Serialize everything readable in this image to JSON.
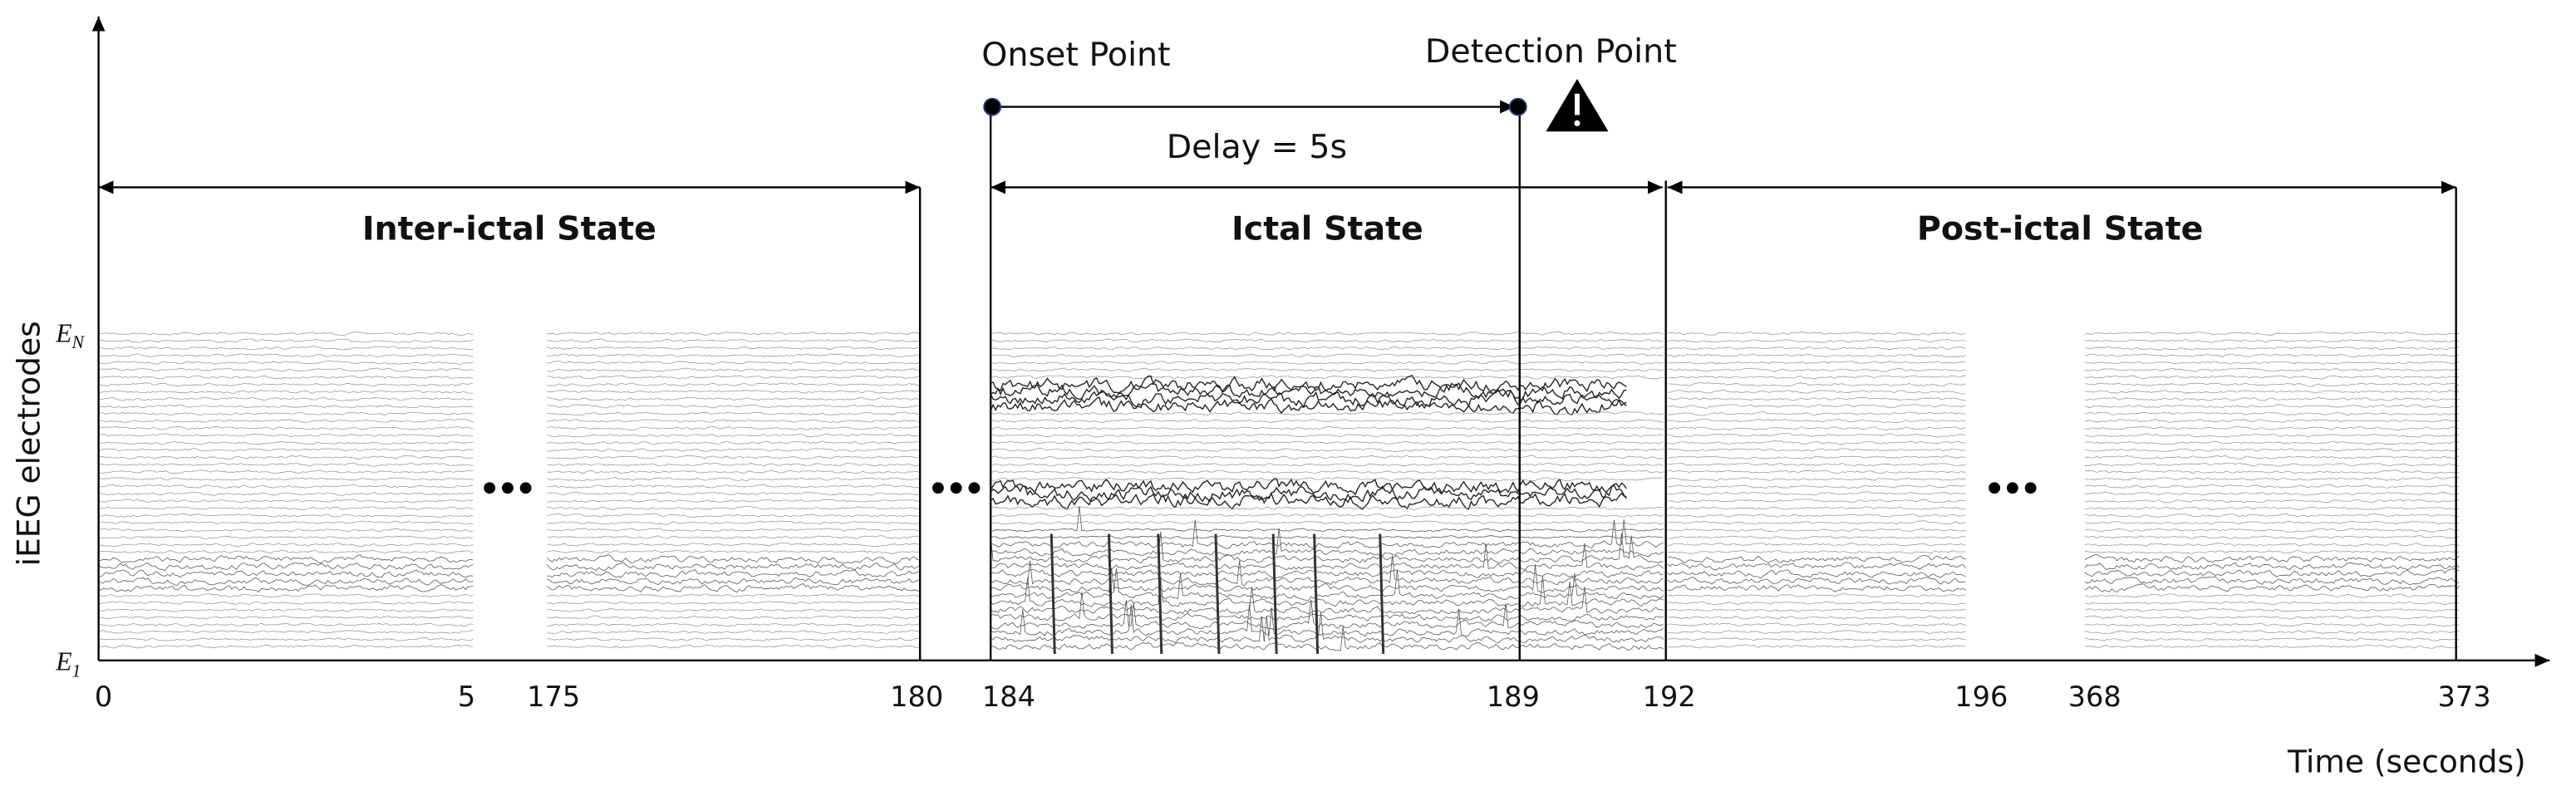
{
  "axes": {
    "y_label": "iEEG electrodes",
    "x_label": "Time (seconds)",
    "electrodes": {
      "top": {
        "base": "E",
        "sub": "N"
      },
      "bottom": {
        "base": "E",
        "sub": "1"
      }
    },
    "time_ticks": [
      "0",
      "5",
      "175",
      "180",
      "184",
      "189",
      "192",
      "196",
      "368",
      "373"
    ]
  },
  "states": [
    {
      "label": "Inter-ictal State"
    },
    {
      "label": "Ictal State"
    },
    {
      "label": "Post-ictal State"
    }
  ],
  "markers": {
    "onset": "Onset Point",
    "detection": "Detection Point",
    "delay": "Delay = 5s"
  }
}
